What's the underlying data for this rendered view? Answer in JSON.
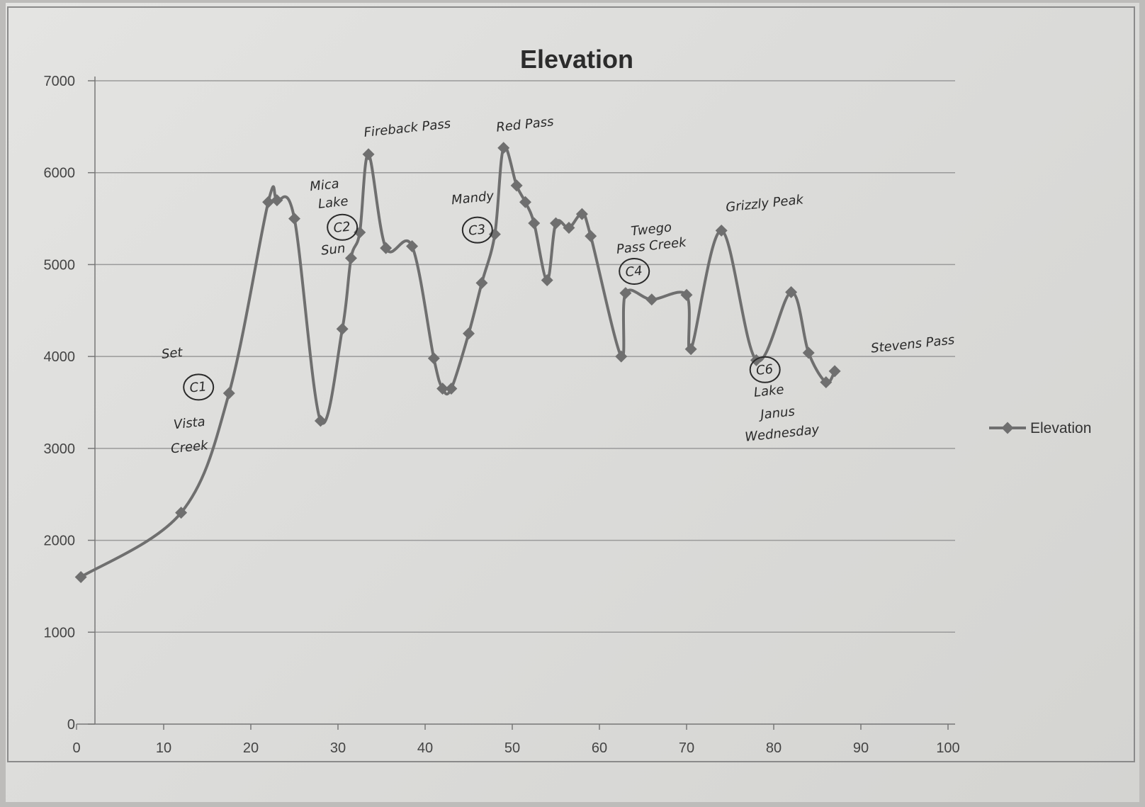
{
  "chart_data": {
    "type": "line",
    "title": "Elevation",
    "xlabel": "",
    "ylabel": "",
    "xlim": [
      0,
      100
    ],
    "ylim": [
      0,
      7000
    ],
    "x_ticks": [
      0,
      10,
      20,
      30,
      40,
      50,
      60,
      70,
      80,
      90,
      100
    ],
    "y_ticks": [
      0,
      1000,
      2000,
      3000,
      4000,
      5000,
      6000,
      7000
    ],
    "grid": "horizontal",
    "legend": "right",
    "colors": {
      "series": "#6f6f6f",
      "grid": "#9a9a9a",
      "axis": "#777777"
    },
    "series": [
      {
        "name": "Elevation",
        "x": [
          0.5,
          12,
          17.5,
          22,
          23,
          25,
          28,
          30.5,
          31.5,
          32.5,
          33.5,
          35.5,
          38.5,
          41,
          42,
          43,
          45,
          46.5,
          48,
          49,
          50.5,
          51.5,
          52.5,
          54,
          55,
          56.5,
          58,
          59,
          62.5,
          63,
          66,
          70,
          70.5,
          74,
          78,
          82,
          84,
          86,
          87
        ],
        "values": [
          1600,
          2300,
          3600,
          5680,
          5700,
          5500,
          3300,
          4300,
          5070,
          5350,
          6200,
          5180,
          5200,
          3980,
          3650,
          3650,
          4250,
          4800,
          5330,
          6270,
          5860,
          5680,
          5450,
          4830,
          5450,
          5400,
          5550,
          5310,
          4000,
          4690,
          4620,
          4670,
          4080,
          5370,
          3960,
          4700,
          4040,
          3720,
          3840
        ]
      }
    ],
    "annotations": [
      {
        "text": "Set",
        "x": 11,
        "y": 3990
      },
      {
        "text": "C1",
        "x": 14,
        "y": 3620
      },
      {
        "text": "Vista",
        "x": 13,
        "y": 3230
      },
      {
        "text": "Creek",
        "x": 13,
        "y": 2970
      },
      {
        "text": "Mica",
        "x": 28.5,
        "y": 5820
      },
      {
        "text": "Lake",
        "x": 29.5,
        "y": 5630
      },
      {
        "text": "C2",
        "x": 30.5,
        "y": 5360
      },
      {
        "text": "Sun",
        "x": 29.5,
        "y": 5120
      },
      {
        "text": "Fireback Pass",
        "x": 38,
        "y": 6440
      },
      {
        "text": "Red Pass",
        "x": 51.5,
        "y": 6480
      },
      {
        "text": "Mandy",
        "x": 45.5,
        "y": 5680
      },
      {
        "text": "C3",
        "x": 46,
        "y": 5330
      },
      {
        "text": "Twego",
        "x": 66,
        "y": 5340
      },
      {
        "text": "Pass Creek",
        "x": 66,
        "y": 5160
      },
      {
        "text": "C4",
        "x": 64,
        "y": 4880
      },
      {
        "text": "Grizzly Peak",
        "x": 79,
        "y": 5620
      },
      {
        "text": "C6",
        "x": 79,
        "y": 3810
      },
      {
        "text": "Lake",
        "x": 79.5,
        "y": 3580
      },
      {
        "text": "Janus",
        "x": 80.5,
        "y": 3340
      },
      {
        "text": "Wednesday",
        "x": 81,
        "y": 3120
      },
      {
        "text": "Stevens Pass",
        "x": 96,
        "y": 4090
      }
    ]
  }
}
